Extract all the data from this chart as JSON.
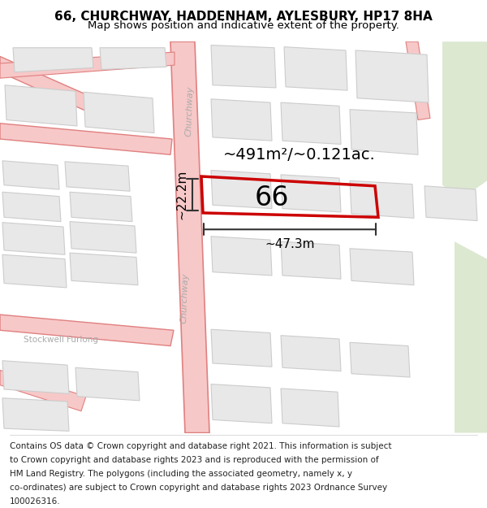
{
  "title": "66, CHURCHWAY, HADDENHAM, AYLESBURY, HP17 8HA",
  "subtitle": "Map shows position and indicative extent of the property.",
  "footer_lines": [
    "Contains OS data © Crown copyright and database right 2021. This information is subject",
    "to Crown copyright and database rights 2023 and is reproduced with the permission of",
    "HM Land Registry. The polygons (including the associated geometry, namely x, y",
    "co-ordinates) are subject to Crown copyright and database rights 2023 Ordnance Survey",
    "100026316."
  ],
  "road_color": "#f7c8c8",
  "road_edge_color": "#e08080",
  "building_fill": "#e8e8e8",
  "building_edge": "#cccccc",
  "highlight_color": "#cc0000",
  "area_label": "~491m²/~0.121ac.",
  "number_label": "66",
  "dim_width": "~47.3m",
  "dim_height": "~22.2m",
  "street_name_upper": "Churchway",
  "street_name_lower": "Churchway",
  "street_name_horiz": "Stockwell Furlong",
  "title_fontsize": 11,
  "subtitle_fontsize": 9.5,
  "footer_fontsize": 7.5,
  "green_color": "#dce8d0"
}
